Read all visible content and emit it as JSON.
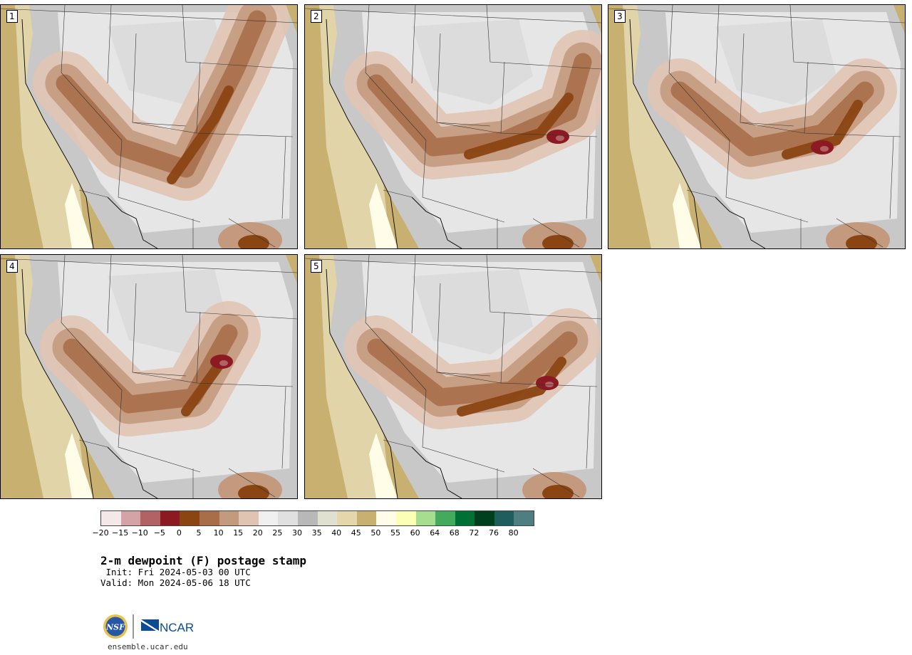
{
  "panels": [
    {
      "label": "1"
    },
    {
      "label": "2"
    },
    {
      "label": "3"
    },
    {
      "label": "4"
    },
    {
      "label": "5"
    }
  ],
  "colorbar": {
    "colors": [
      "#f4e8e8",
      "#d4a3a6",
      "#b26165",
      "#8b1a22",
      "#8b4513",
      "#a86e4a",
      "#c49a7e",
      "#e0c4b2",
      "#f0f0f0",
      "#e0e0e0",
      "#b8b8b8",
      "#e0e0d0",
      "#e6d6ab",
      "#c8b070",
      "#fffde8",
      "#fcffb6",
      "#a6dd8f",
      "#43aa5e",
      "#007035",
      "#00401f",
      "#1f5e5e",
      "#4f7e80"
    ],
    "ticks": [
      "-20",
      "-15",
      "-10",
      "-5",
      "0",
      "5",
      "10",
      "15",
      "20",
      "25",
      "30",
      "35",
      "40",
      "45",
      "50",
      "55",
      "60",
      "64",
      "68",
      "72",
      "76",
      "80"
    ]
  },
  "title": "2-m dewpoint (F) postage stamp",
  "init_text": " Init: Fri 2024-05-03 00 UTC",
  "valid_text": "Valid: Mon 2024-05-06 18 UTC",
  "logos": {
    "nsf": "NSF",
    "ncar": "NCAR"
  },
  "website": "ensemble.ucar.edu"
}
